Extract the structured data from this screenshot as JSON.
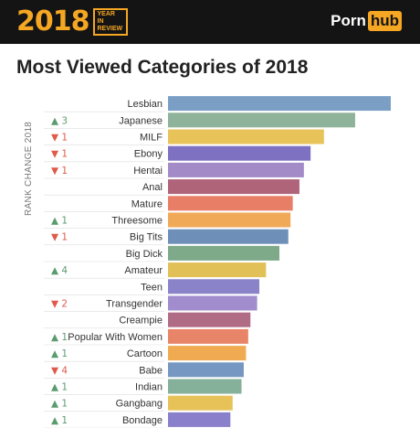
{
  "header": {
    "year": "2018",
    "year_tag": "YEAR IN REVIEW",
    "logo_part1": "Porn",
    "logo_part2": "hub"
  },
  "title": "Most Viewed Categories of 2018",
  "rank_axis_label": "RANK CHANGE 2018",
  "colors": {
    "header_bg": "#141414",
    "accent": "#f5a623",
    "up": "#5b9c6e",
    "down": "#e05a4a",
    "grid": "#dddddd"
  },
  "chart_data": {
    "type": "bar",
    "orientation": "horizontal",
    "title": "Most Viewed Categories of 2018",
    "xlabel": "",
    "ylabel": "RANK CHANGE 2018",
    "xlim": [
      0,
      100
    ],
    "grid": true,
    "categories": [
      "Lesbian",
      "Japanese",
      "MILF",
      "Ebony",
      "Hentai",
      "Anal",
      "Mature",
      "Threesome",
      "Big Tits",
      "Big Dick",
      "Amateur",
      "Teen",
      "Transgender",
      "Creampie",
      "Popular With Women",
      "Cartoon",
      "Babe",
      "Indian",
      "Gangbang",
      "Bondage"
    ],
    "values": [
      100,
      84,
      70,
      64,
      61,
      59,
      56,
      55,
      54,
      50,
      44,
      41,
      40,
      37,
      36,
      35,
      34,
      33,
      29,
      28
    ],
    "rank_change": [
      "",
      "▲ 3",
      "▼ 1",
      "▼ 1",
      "▼ 1",
      "",
      "",
      "▲ 1",
      "▼ 1",
      "",
      "▲ 4",
      "",
      "▼ 2",
      "",
      "▲ 1",
      "▲ 1",
      "▼ 4",
      "▲ 1",
      "▲ 1",
      "▲ 1"
    ],
    "bar_colors": [
      "#7b9fc4",
      "#8fb39a",
      "#e8c35a",
      "#7e71c1",
      "#a38bc7",
      "#b0647a",
      "#e97e67",
      "#f0a957",
      "#6d8fb8",
      "#7eaa8a",
      "#e2c058",
      "#8b83c9",
      "#a18ccd",
      "#b06c84",
      "#e88568",
      "#f0ab52",
      "#7697c1",
      "#85b09a",
      "#e6c259",
      "#8a7fca"
    ]
  }
}
